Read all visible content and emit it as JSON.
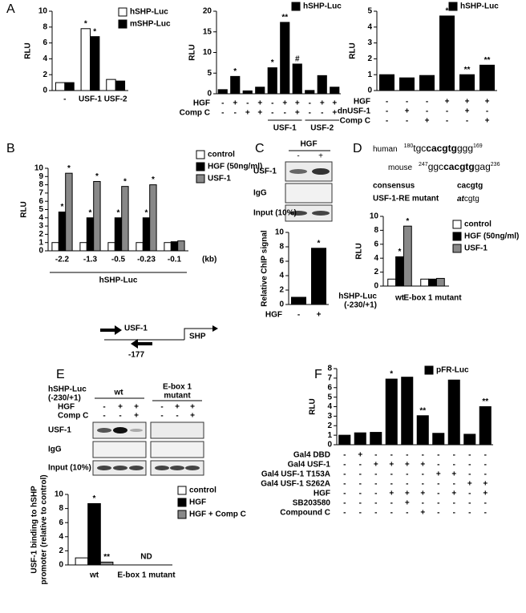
{
  "panel_labels": [
    "A",
    "B",
    "C",
    "D",
    "E",
    "F"
  ],
  "chart_data": [
    {
      "type": "bar",
      "ylabel": "RLU",
      "ylim": [
        0,
        10
      ],
      "yticks": [
        0,
        2,
        4,
        6,
        8,
        10
      ],
      "categories": [
        "-",
        "USF-1",
        "USF-2"
      ],
      "series": [
        {
          "name": "hSHP-Luc",
          "color": "#ffffff",
          "values": [
            1,
            7.8,
            1.4
          ],
          "annotations": [
            null,
            "*",
            null
          ]
        },
        {
          "name": "mSHP-Luc",
          "color": "#000000",
          "values": [
            1,
            6.8,
            1.2
          ],
          "annotations": [
            null,
            "*",
            null
          ]
        }
      ]
    },
    {
      "type": "bar",
      "ylabel": "RLU",
      "ylim": [
        0,
        20
      ],
      "yticks": [
        0,
        5,
        10,
        15,
        20
      ],
      "series": [
        {
          "name": "hSHP-Luc",
          "color": "#000000",
          "values": [
            1,
            4.2,
            0.7,
            1.6,
            6.3,
            17.3,
            7.2,
            0.8,
            4.4,
            1.6
          ],
          "annotations": [
            null,
            "*",
            null,
            null,
            "*",
            "**",
            "#",
            null,
            null,
            null
          ]
        }
      ],
      "conditions": [
        {
          "name": "HGF",
          "values": [
            "-",
            "+",
            "-",
            "+",
            "-",
            "+",
            "+",
            "-",
            "+",
            "+"
          ]
        },
        {
          "name": "Comp C",
          "values": [
            "-",
            "-",
            "+",
            "+",
            "-",
            "-",
            "+",
            "-",
            "-",
            "+"
          ]
        }
      ],
      "groups": [
        "USF-1",
        "USF-2"
      ]
    },
    {
      "type": "bar",
      "ylabel": "RLU",
      "ylim": [
        0,
        5
      ],
      "yticks": [
        0,
        1,
        2,
        3,
        4,
        5
      ],
      "series": [
        {
          "name": "hSHP-Luc",
          "color": "#000000",
          "values": [
            1,
            0.8,
            0.95,
            4.7,
            1.0,
            1.6
          ],
          "annotations": [
            null,
            null,
            null,
            "*",
            "**",
            "**"
          ]
        }
      ],
      "conditions": [
        {
          "name": "HGF",
          "values": [
            "-",
            "-",
            "-",
            "+",
            "+",
            "+"
          ]
        },
        {
          "name": "dnUSF-1",
          "values": [
            "-",
            "+",
            "-",
            "-",
            "+",
            "-"
          ]
        },
        {
          "name": "Comp C",
          "values": [
            "-",
            "-",
            "+",
            "-",
            "-",
            "+"
          ]
        }
      ]
    },
    {
      "type": "bar",
      "ylabel": "RLU",
      "ylim": [
        0,
        10
      ],
      "yticks": [
        0,
        1,
        2,
        3,
        4,
        5,
        6,
        7,
        8,
        9,
        10
      ],
      "categories": [
        "-2.2",
        "-1.3",
        "-0.5",
        "-0.23",
        "-0.1"
      ],
      "xlabel": "(kb)",
      "groups": [
        "hSHP-Luc"
      ],
      "series": [
        {
          "name": "control",
          "color": "#ffffff",
          "values": [
            1,
            1,
            1,
            1,
            1
          ]
        },
        {
          "name": "HGF (50ng/ml)",
          "color": "#000000",
          "values": [
            4.7,
            4,
            4,
            4,
            1.1
          ],
          "annotations": [
            "*",
            "*",
            "*",
            "*",
            null
          ]
        },
        {
          "name": "USF-1",
          "color": "#888888",
          "values": [
            9.4,
            8.4,
            7.8,
            8,
            1.2
          ],
          "annotations": [
            "*",
            "*",
            "*",
            "*",
            null
          ]
        }
      ]
    },
    {
      "type": "bar",
      "ylabel": "Relative ChIP signal",
      "ylim": [
        0,
        10
      ],
      "yticks": [
        0,
        2,
        4,
        6,
        8,
        10
      ],
      "series": [
        {
          "name": "ChIP",
          "color": "#000000",
          "values": [
            1,
            7.8
          ],
          "annotations": [
            null,
            "*"
          ]
        }
      ],
      "conditions": [
        {
          "name": "HGF",
          "values": [
            "-",
            "+"
          ]
        }
      ]
    },
    {
      "type": "bar",
      "ylabel": "RLU",
      "ylim": [
        0,
        10
      ],
      "yticks": [
        0,
        2,
        4,
        6,
        8,
        10
      ],
      "categories": [
        "wt",
        "E-box 1 mutant"
      ],
      "row_label": [
        "hSHP-Luc",
        "(-230/+1)"
      ],
      "series": [
        {
          "name": "control",
          "color": "#ffffff",
          "values": [
            1,
            1
          ]
        },
        {
          "name": "HGF (50ng/ml)",
          "color": "#000000",
          "values": [
            4.2,
            1
          ],
          "annotations": [
            "*",
            null
          ]
        },
        {
          "name": "USF-1",
          "color": "#888888",
          "values": [
            8.6,
            1.1
          ],
          "annotations": [
            "*",
            null
          ]
        }
      ]
    },
    {
      "type": "bar",
      "ylabel": [
        "USF-1 binding to hSHP",
        "promoter (relative to control)"
      ],
      "ylim": [
        0,
        10
      ],
      "yticks": [
        0,
        2,
        4,
        6,
        8,
        10
      ],
      "categories": [
        "wt",
        "E-box 1 mutant"
      ],
      "note": "ND",
      "series": [
        {
          "name": "control",
          "color": "#ffffff",
          "values": [
            1,
            null
          ]
        },
        {
          "name": "HGF",
          "color": "#000000",
          "values": [
            8.7,
            null
          ],
          "annotations": [
            "*",
            null
          ]
        },
        {
          "name": "HGF + Comp C",
          "color": "#888888",
          "values": [
            0.4,
            null
          ],
          "annotations": [
            "**",
            null
          ]
        }
      ]
    },
    {
      "type": "bar",
      "ylabel": "RLU",
      "ylim": [
        0,
        8
      ],
      "yticks": [
        0,
        1,
        2,
        3,
        4,
        5,
        6,
        7,
        8
      ],
      "series": [
        {
          "name": "pFR-Luc",
          "color": "#000000",
          "values": [
            1,
            1.25,
            1.3,
            6.9,
            7.1,
            3.05,
            1.2,
            6.8,
            1.1,
            4.0
          ],
          "annotations": [
            null,
            null,
            null,
            "*",
            null,
            "**",
            null,
            null,
            null,
            "**"
          ]
        }
      ],
      "conditions": [
        {
          "name": "Gal4 DBD",
          "values": [
            "-",
            "+",
            "-",
            "-",
            "-",
            "-",
            "-",
            "-",
            "-",
            "-"
          ]
        },
        {
          "name": "Gal4 USF-1",
          "values": [
            "-",
            "-",
            "+",
            "+",
            "+",
            "+",
            "-",
            "-",
            "-",
            "-"
          ]
        },
        {
          "name": "Gal4 USF-1 T153A",
          "values": [
            "-",
            "-",
            "-",
            "-",
            "-",
            "-",
            "+",
            "+",
            "-",
            "-"
          ]
        },
        {
          "name": "Gal4 USF-1 S262A",
          "values": [
            "-",
            "-",
            "-",
            "-",
            "-",
            "-",
            "-",
            "-",
            "+",
            "+"
          ]
        },
        {
          "name": "HGF",
          "values": [
            "-",
            "-",
            "-",
            "+",
            "+",
            "+",
            "-",
            "+",
            "-",
            "+"
          ]
        },
        {
          "name": "SB203580",
          "values": [
            "-",
            "-",
            "-",
            "-",
            "+",
            "-",
            "-",
            "-",
            "-",
            "-"
          ]
        },
        {
          "name": "Compound C",
          "values": [
            "-",
            "-",
            "-",
            "-",
            "-",
            "+",
            "-",
            "-",
            "-",
            "-"
          ]
        }
      ]
    }
  ],
  "C_gel": {
    "header": "HGF",
    "lanes": [
      "-",
      "+"
    ],
    "rows": [
      "USF-1",
      "IgG",
      "Input (10%)"
    ]
  },
  "D_text": {
    "human": "human",
    "human_start": "180",
    "human_pre": "tgc",
    "human_core": "cacgtg",
    "human_post": "ggg",
    "human_end": "169",
    "mouse": "mouse",
    "mouse_start": "247",
    "mouse_pre": "ggc",
    "mouse_core": "cacgtg",
    "mouse_post": "gag",
    "mouse_end": "236",
    "consensus": "consensus",
    "consensus_seq": "cacgtg",
    "mutant": "USF-1-RE mutant",
    "mutant_pre": "at",
    "mutant_post": "cgtg"
  },
  "E_diagram": {
    "factor": "USF-1",
    "position": "-177",
    "gene": "SHP"
  },
  "E_gel": {
    "construct": [
      "hSHP-Luc",
      "(-230/+1)"
    ],
    "groups": [
      "wt",
      [
        "E-box 1",
        "mutant"
      ]
    ],
    "conditions": [
      {
        "name": "HGF",
        "values": [
          "-",
          "+",
          "+",
          "-",
          "+",
          "+"
        ]
      },
      {
        "name": "Comp C",
        "values": [
          "-",
          "-",
          "+",
          "-",
          "-",
          "+"
        ]
      }
    ],
    "rows": [
      "USF-1",
      "IgG",
      "Input (10%)"
    ]
  }
}
